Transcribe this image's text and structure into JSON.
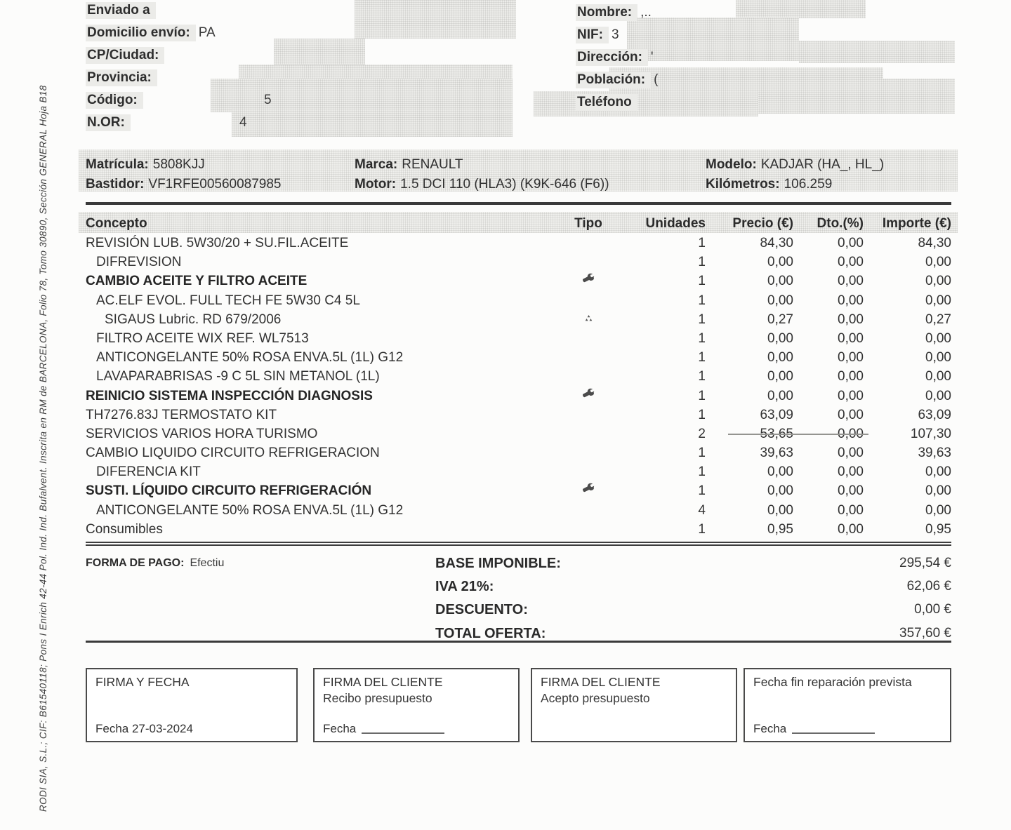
{
  "sidebar": {
    "registration_text": "RODI SIA, S.L.; CIF: B61540118; Pons I Enrich 42-44 Pol. Ind. Ind. Bufalvent. Inscrita en RM de BARCELONA, Folio 78, Tomo 30890, Sección GENERAL Hoja B18"
  },
  "ship_block": {
    "fields": [
      {
        "label": "Enviado a",
        "value": ""
      },
      {
        "label": "Domicilio envío:",
        "value": "PA"
      },
      {
        "label": "CP/Ciudad:",
        "value": ""
      },
      {
        "label": "Provincia:",
        "value": ""
      },
      {
        "label": "Código:",
        "value": "5"
      },
      {
        "label": "N.OR:",
        "value": "4"
      }
    ]
  },
  "customer_block": {
    "fields": [
      {
        "label": "Nombre:",
        "value": ",.."
      },
      {
        "label": "NIF:",
        "value": "3"
      },
      {
        "label": "Dirección:",
        "value": "'"
      },
      {
        "label": "Población:",
        "value": "("
      },
      {
        "label": "Teléfono",
        "value": ""
      }
    ]
  },
  "vehicle": {
    "matricula_label": "Matrícula:",
    "matricula": "5808KJJ",
    "bastidor_label": "Bastidor:",
    "bastidor": "VF1RFE00560087985",
    "marca_label": "Marca:",
    "marca": "RENAULT",
    "motor_label": "Motor:",
    "motor": "1.5 DCI 110 (HLA3) (K9K-646 (F6))",
    "modelo_label": "Modelo:",
    "modelo": "KADJAR (HA_, HL_)",
    "km_label": "Kilómetros:",
    "km": "106.259"
  },
  "items_table": {
    "headers": {
      "concept": "Concepto",
      "type": "Tipo",
      "units": "Unidades",
      "price": "Precio (€)",
      "discount": "Dto.(%)",
      "amount": "Importe (€)"
    },
    "rows": [
      {
        "concept": "REVISIÓN LUB. 5W30/20 + SU.FIL.ACEITE",
        "indent": 0,
        "bold": false,
        "icon": "",
        "units": "1",
        "price": "84,30",
        "discount": "0,00",
        "amount": "84,30"
      },
      {
        "concept": "DIFREVISION",
        "indent": 1,
        "bold": false,
        "icon": "",
        "units": "1",
        "price": "0,00",
        "discount": "0,00",
        "amount": "0,00"
      },
      {
        "concept": "CAMBIO ACEITE Y FILTRO ACEITE",
        "indent": 0,
        "bold": true,
        "icon": "wrench",
        "units": "1",
        "price": "0,00",
        "discount": "0,00",
        "amount": "0,00"
      },
      {
        "concept": "AC.ELF EVOL. FULL TECH FE 5W30 C4 5L",
        "indent": 1,
        "bold": false,
        "icon": "",
        "units": "1",
        "price": "0,00",
        "discount": "0,00",
        "amount": "0,00"
      },
      {
        "concept": "SIGAUS Lubric. RD 679/2006",
        "indent": 2,
        "bold": false,
        "icon": "recycle",
        "units": "1",
        "price": "0,27",
        "discount": "0,00",
        "amount": "0,27"
      },
      {
        "concept": "FILTRO ACEITE WIX REF. WL7513",
        "indent": 1,
        "bold": false,
        "icon": "",
        "units": "1",
        "price": "0,00",
        "discount": "0,00",
        "amount": "0,00"
      },
      {
        "concept": "ANTICONGELANTE 50% ROSA ENVA.5L (1L) G12",
        "indent": 1,
        "bold": false,
        "icon": "",
        "units": "1",
        "price": "0,00",
        "discount": "0,00",
        "amount": "0,00"
      },
      {
        "concept": "LAVAPARABRISAS -9 C 5L SIN METANOL (1L)",
        "indent": 1,
        "bold": false,
        "icon": "",
        "units": "1",
        "price": "0,00",
        "discount": "0,00",
        "amount": "0,00"
      },
      {
        "concept": "REINICIO SISTEMA INSPECCIÓN DIAGNOSIS",
        "indent": 0,
        "bold": true,
        "icon": "wrench",
        "units": "1",
        "price": "0,00",
        "discount": "0,00",
        "amount": "0,00"
      },
      {
        "concept": "TH7276.83J TERMOSTATO KIT",
        "indent": 0,
        "bold": false,
        "icon": "",
        "units": "1",
        "price": "63,09",
        "discount": "0,00",
        "amount": "63,09"
      },
      {
        "concept": "SERVICIOS VARIOS HORA TURISMO",
        "indent": 0,
        "bold": false,
        "icon": "",
        "units": "2",
        "price": "53,65",
        "discount": "0,00",
        "amount": "107,30",
        "strike": true
      },
      {
        "concept": "CAMBIO LIQUIDO CIRCUITO REFRIGERACION",
        "indent": 0,
        "bold": false,
        "icon": "",
        "units": "1",
        "price": "39,63",
        "discount": "0,00",
        "amount": "39,63"
      },
      {
        "concept": "DIFERENCIA KIT",
        "indent": 1,
        "bold": false,
        "icon": "",
        "units": "1",
        "price": "0,00",
        "discount": "0,00",
        "amount": "0,00"
      },
      {
        "concept": "SUSTI. LÍQUIDO CIRCUITO REFRIGERACIÓN",
        "indent": 0,
        "bold": true,
        "icon": "wrench",
        "units": "1",
        "price": "0,00",
        "discount": "0,00",
        "amount": "0,00"
      },
      {
        "concept": "ANTICONGELANTE 50% ROSA ENVA.5L (1L) G12",
        "indent": 1,
        "bold": false,
        "icon": "",
        "units": "4",
        "price": "0,00",
        "discount": "0,00",
        "amount": "0,00"
      },
      {
        "concept": "Consumibles",
        "indent": 0,
        "bold": false,
        "icon": "",
        "units": "1",
        "price": "0,95",
        "discount": "0,00",
        "amount": "0,95"
      }
    ]
  },
  "payment": {
    "label": "FORMA DE PAGO:",
    "value": "Efectiu"
  },
  "totals": {
    "base_label": "BASE IMPONIBLE:",
    "base": "295,54 €",
    "iva_label": "IVA 21%:",
    "iva": "62,06 €",
    "discount_label": "DESCUENTO:",
    "discount": "0,00 €",
    "total_label": "TOTAL OFERTA:",
    "total": "357,60 €"
  },
  "signature_boxes": [
    {
      "title": "FIRMA Y FECHA",
      "subtitle": "",
      "footer": "Fecha 27-03-2024"
    },
    {
      "title": "FIRMA DEL CLIENTE",
      "subtitle": "Recibo presupuesto",
      "footer": "Fecha"
    },
    {
      "title": "FIRMA DEL CLIENTE",
      "subtitle": "Acepto presupuesto",
      "footer": ""
    },
    {
      "title": "Fecha fin reparación prevista",
      "subtitle": "",
      "footer": "Fecha"
    }
  ]
}
